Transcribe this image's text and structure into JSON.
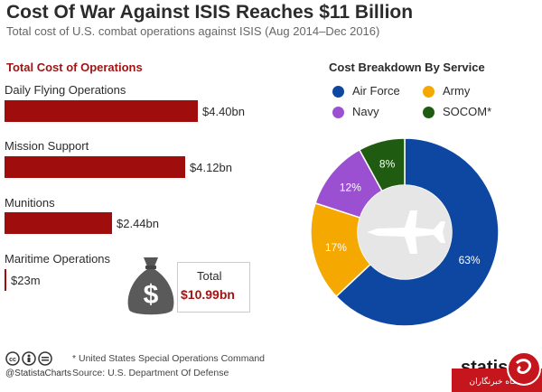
{
  "header": {
    "title": "Cost Of War Against ISIS Reaches $11 Billion",
    "subtitle": "Total cost of U.S. combat operations against ISIS (Aug 2014–Dec 2016)"
  },
  "chart_data": [
    {
      "type": "bar",
      "orientation": "horizontal",
      "title": "Total Cost of Operations",
      "unit": "billion USD",
      "categories": [
        "Daily Flying Operations",
        "Mission Support",
        "Munitions",
        "Maritime Operations"
      ],
      "values": [
        4.4,
        4.12,
        2.44,
        0.023
      ],
      "value_labels": [
        "$4.40bn",
        "$4.12bn",
        "$2.44bn",
        "$23m"
      ],
      "color": "#a00d0d",
      "total": {
        "label": "Total",
        "value": 10.99,
        "value_label": "$10.99bn"
      }
    },
    {
      "type": "pie",
      "subtype": "donut",
      "title": "Cost Breakdown By Service",
      "labels": [
        "Air Force",
        "Army",
        "Navy",
        "SOCOM*"
      ],
      "values": [
        63,
        17,
        12,
        8
      ],
      "value_labels": [
        "63%",
        "17%",
        "12%",
        "8%"
      ],
      "colors": [
        "#0d47a1",
        "#f5a800",
        "#9b4fd1",
        "#1f5c12"
      ]
    }
  ],
  "footer": {
    "handle": "@StatistaCharts",
    "note": "* United States Special Operations Command",
    "source": "Source: U.S. Department Of Defense",
    "brand": "statista",
    "watermark_text": "باشگاه خبرنگاران"
  }
}
